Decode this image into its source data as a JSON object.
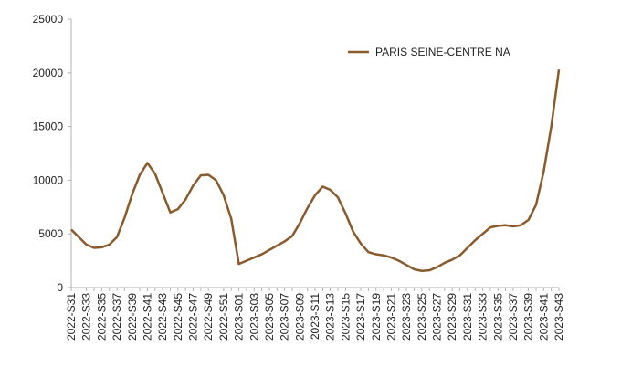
{
  "chart_data": {
    "type": "line",
    "categories": [
      "2022-S31",
      null,
      "2022-S33",
      null,
      "2022-S35",
      null,
      "2022-S37",
      null,
      "2022-S39",
      null,
      "2022-S41",
      null,
      "2022-S43",
      null,
      "2022-S45",
      null,
      "2022-S47",
      null,
      "2022-S49",
      null,
      "2022-S51",
      null,
      "2023-S01",
      null,
      "2023-S03",
      null,
      "2023-S05",
      null,
      "2023-S07",
      null,
      "2023-S09",
      null,
      "2023-S11",
      null,
      "2023-S13",
      null,
      "2023-S15",
      null,
      "2023-S17",
      null,
      "2023-S19",
      null,
      "2023-S21",
      null,
      "2023-S23",
      null,
      "2023-S25",
      null,
      "2023-S27",
      null,
      "2023-S29",
      null,
      "2023-S31",
      null,
      "2023-S33",
      null,
      "2023-S35",
      null,
      "2023-S37",
      null,
      "2023-S39",
      null,
      "2023-S41",
      null,
      "2023-S43"
    ],
    "series": [
      {
        "name": "PARIS SEINE-CENTRE NA",
        "color": "#8b5a2b",
        "values": [
          5400,
          4700,
          4000,
          3700,
          3750,
          4000,
          4700,
          6500,
          8700,
          10500,
          11600,
          10600,
          8800,
          7000,
          7300,
          8200,
          9500,
          10450,
          10500,
          10000,
          8600,
          6400,
          2200,
          2500,
          2800,
          3100,
          3500,
          3900,
          4300,
          4800,
          6000,
          7400,
          8600,
          9400,
          9100,
          8400,
          6900,
          5200,
          4100,
          3300,
          3100,
          3000,
          2800,
          2500,
          2100,
          1700,
          1550,
          1600,
          1900,
          2300,
          2600,
          3000,
          3700,
          4400,
          5000,
          5600,
          5750,
          5800,
          5700,
          5800,
          6300,
          7700,
          10800,
          15000,
          20300
        ]
      }
    ],
    "ylim": [
      0,
      25000
    ],
    "yticks": [
      0,
      5000,
      10000,
      15000,
      20000,
      25000
    ],
    "grid": false,
    "legend": "top-right"
  }
}
